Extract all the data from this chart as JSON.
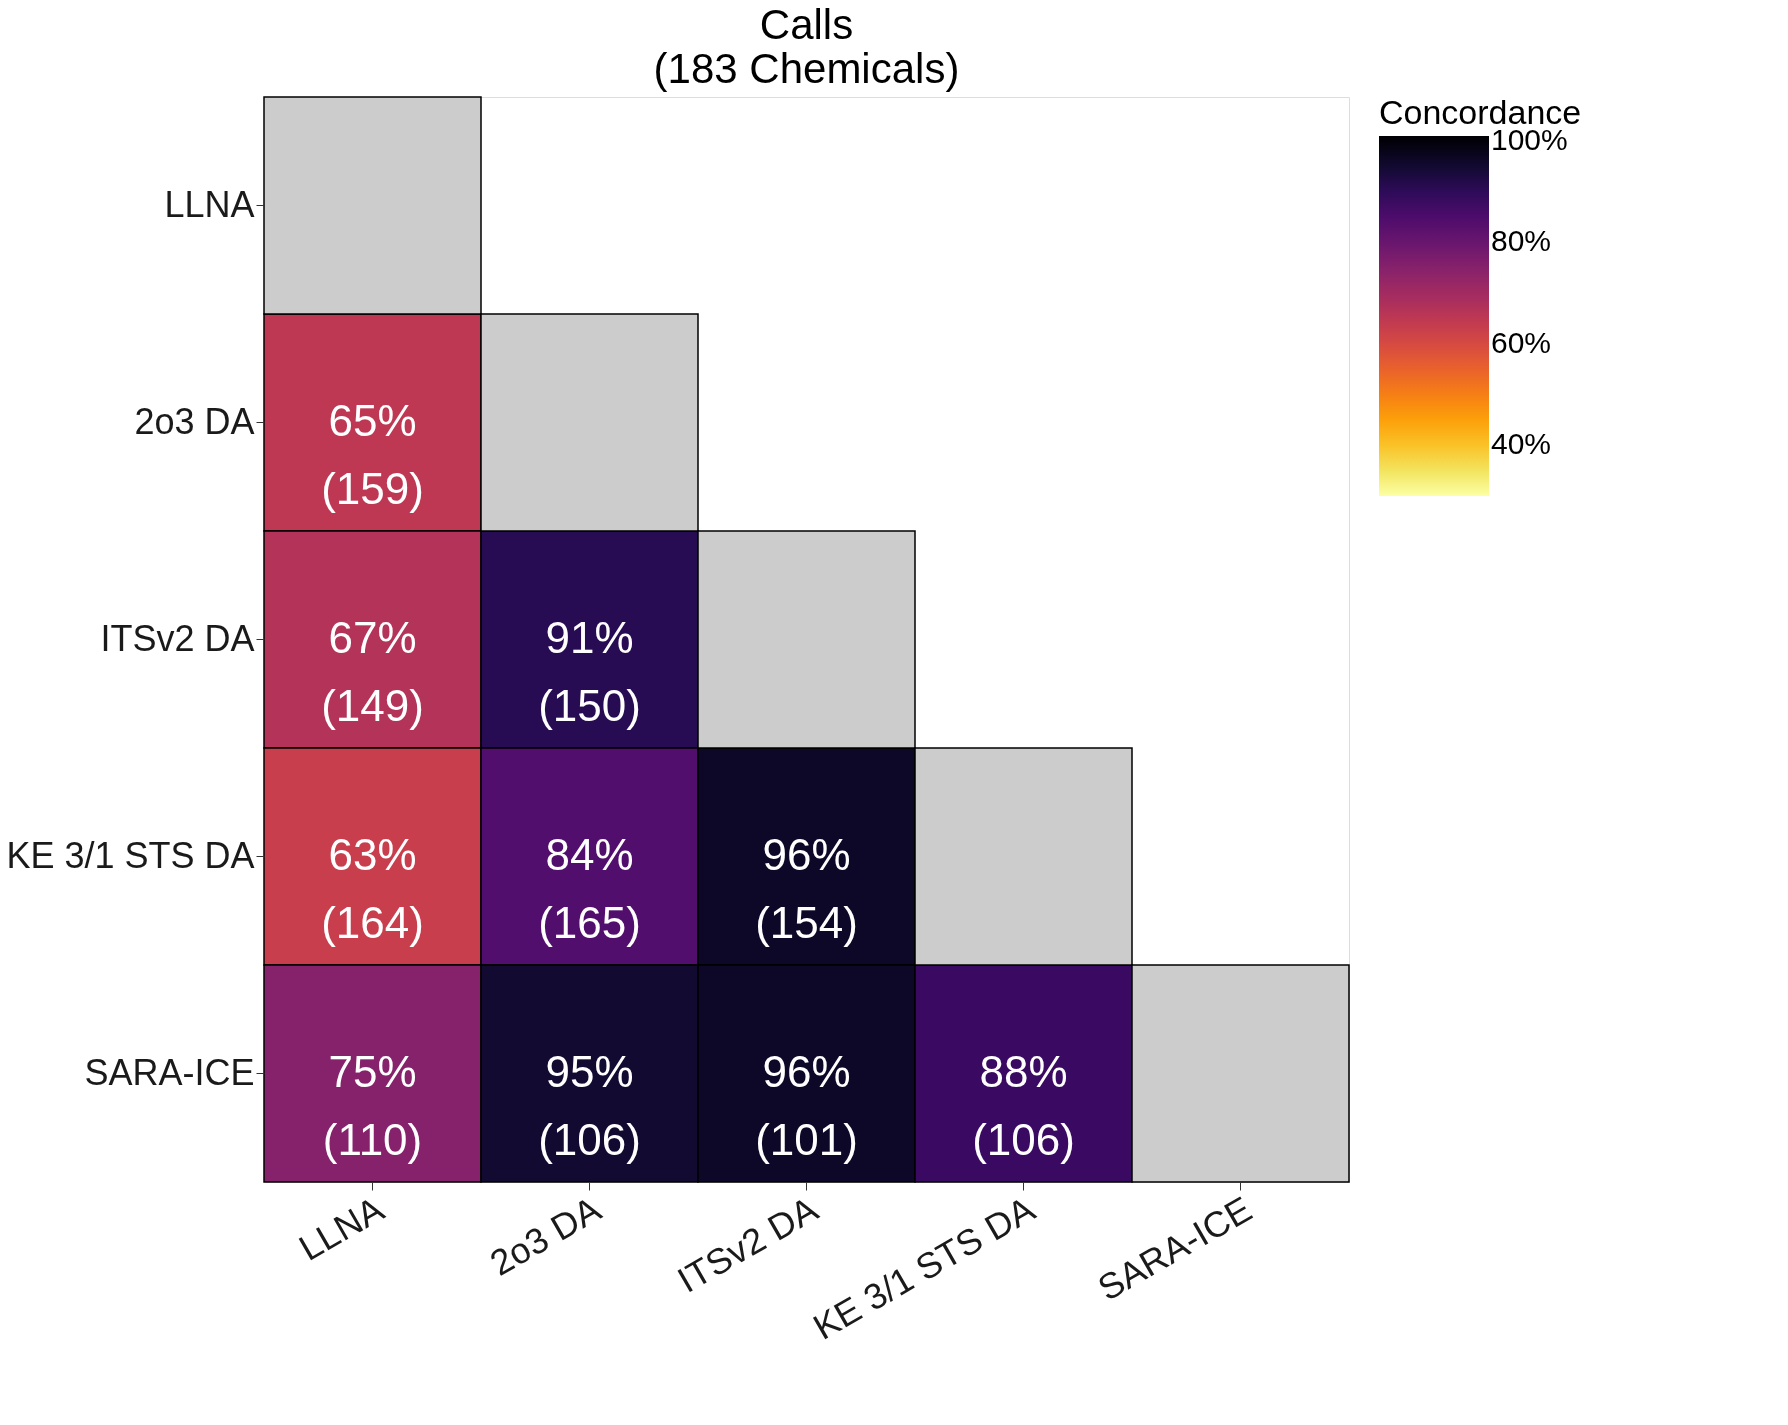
{
  "chart_data": {
    "type": "heatmap",
    "title": [
      "Calls",
      "(183 Chemicals)"
    ],
    "clabel": "Concordance",
    "categories": [
      "LLNA",
      "2o3 DA",
      "ITSv2 DA",
      "KE 3/1 STS DA",
      "SARA-ICE"
    ],
    "y_categories": [
      "LLNA",
      "2o3 DA",
      "ITSv2 DA",
      "KE 3/1 STS DA",
      "SARA-ICE"
    ],
    "cells": [
      [
        null,
        null,
        null,
        null,
        null
      ],
      [
        65,
        null,
        null,
        null,
        null
      ],
      [
        67,
        91,
        null,
        null,
        null
      ],
      [
        63,
        84,
        96,
        null,
        null
      ],
      [
        75,
        95,
        96,
        88,
        null
      ]
    ],
    "cell_labels": [
      [
        null,
        null,
        null,
        null,
        null
      ],
      [
        "65%\n(159)",
        null,
        null,
        null,
        null
      ],
      [
        "67%\n(149)",
        "91%\n(150)",
        null,
        null,
        null
      ],
      [
        "63%\n(164)",
        "84%\n(165)",
        "96%\n(154)",
        null,
        null
      ],
      [
        "75%\n(110)",
        "95%\n(106)",
        "96%\n(101)",
        "88%\n(106)",
        null
      ]
    ],
    "clim": [
      30,
      101
    ],
    "cticks": [
      {
        "value": 40,
        "label": "40%"
      },
      {
        "value": 60,
        "label": "60%"
      },
      {
        "value": 80,
        "label": "80%"
      },
      {
        "value": 100,
        "label": "100%"
      }
    ]
  }
}
